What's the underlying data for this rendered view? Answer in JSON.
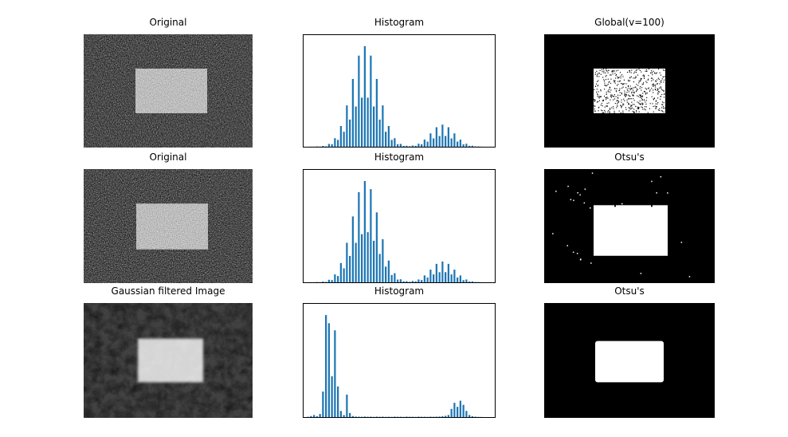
{
  "figure": {
    "rows": [
      {
        "panels": [
          {
            "title": "Original",
            "kind": "image"
          },
          {
            "title": "Histogram",
            "kind": "histogram"
          },
          {
            "title": "Global(v=100)",
            "kind": "image"
          }
        ]
      },
      {
        "panels": [
          {
            "title": "Original",
            "kind": "image"
          },
          {
            "title": "Histogram",
            "kind": "histogram"
          },
          {
            "title": "Otsu's",
            "kind": "image"
          }
        ]
      },
      {
        "panels": [
          {
            "title": "Gaussian filtered Image",
            "kind": "image"
          },
          {
            "title": "Histogram",
            "kind": "histogram"
          },
          {
            "title": "Otsu's",
            "kind": "image"
          }
        ]
      }
    ]
  },
  "colors": {
    "background": "#ffffff",
    "bar": "#1f77b4",
    "frame": "#000000",
    "threshold_foreground": "#ffffff",
    "threshold_background": "#000000"
  },
  "chart_data": [
    {
      "type": "bar",
      "title": "Histogram",
      "xlabel": "",
      "ylabel": "",
      "x_range": [
        0,
        255
      ],
      "bins": 64,
      "grid": false,
      "ticks_hidden": true,
      "ylim": [
        0,
        111
      ],
      "values": [
        0,
        0,
        0.1,
        0.1,
        0.3,
        0.2,
        0.8,
        0.4,
        2.8,
        2.5,
        8.5,
        6.8,
        20.6,
        14.9,
        41.1,
        27,
        67.4,
        40,
        90.6,
        48.8,
        100,
        48.8,
        90.6,
        40,
        67.4,
        27,
        41.1,
        14.9,
        20.6,
        6.8,
        8.5,
        2.5,
        2.8,
        0.8,
        1,
        0.5,
        1.2,
        0.9,
        3,
        2.4,
        7.1,
        5.1,
        13.3,
        8.3,
        19.4,
        10.7,
        22,
        10.7,
        19.4,
        8.3,
        13.3,
        5.1,
        7.1,
        2.4,
        3,
        0.9,
        1,
        0.3,
        0.3,
        0.1,
        0,
        0,
        0,
        0
      ]
    },
    {
      "type": "bar",
      "title": "Histogram",
      "xlabel": "",
      "ylabel": "",
      "x_range": [
        0,
        255
      ],
      "bins": 64,
      "grid": false,
      "ticks_hidden": true,
      "ylim": [
        0,
        111
      ],
      "values": [
        0,
        0,
        0.1,
        0.1,
        0.3,
        0.2,
        0.7,
        0.4,
        2.5,
        2.2,
        7.8,
        6.2,
        19,
        13.8,
        39,
        26,
        65,
        39,
        89,
        47.5,
        100,
        49.5,
        92,
        41,
        69,
        28,
        42.5,
        15.5,
        21.5,
        7.2,
        9,
        2.7,
        3,
        1,
        1.1,
        0.5,
        1.3,
        0.9,
        2.8,
        2.2,
        6.8,
        4.7,
        12.5,
        7.8,
        18.2,
        10,
        20.5,
        10,
        18.2,
        7.8,
        12.5,
        4.7,
        6.8,
        2.2,
        2.8,
        0.8,
        0.9,
        0.3,
        0.3,
        0.1,
        0,
        0,
        0,
        0
      ]
    },
    {
      "type": "bar",
      "title": "Histogram",
      "xlabel": "",
      "ylabel": "",
      "x_range": [
        0,
        255
      ],
      "bins": 64,
      "grid": false,
      "ticks_hidden": true,
      "ylim": [
        0,
        111
      ],
      "values": [
        0,
        0.3,
        1,
        2,
        0.8,
        3,
        25,
        100,
        92,
        40,
        85,
        30,
        6,
        2,
        22,
        4,
        1,
        0.5,
        0.4,
        0.3,
        0.5,
        0.3,
        0.4,
        0.2,
        0.4,
        0.3,
        0.4,
        0.2,
        0.3,
        0.2,
        0.4,
        0.3,
        0.3,
        0.2,
        0.4,
        0.3,
        0.3,
        0.2,
        0.4,
        0.3,
        0.3,
        0.2,
        0.4,
        0.3,
        0.4,
        0.5,
        0.8,
        1.2,
        2,
        8,
        14,
        10,
        16,
        12,
        6,
        2,
        0.8,
        0.4,
        0.2,
        0.1,
        0,
        0,
        0,
        0
      ]
    }
  ]
}
